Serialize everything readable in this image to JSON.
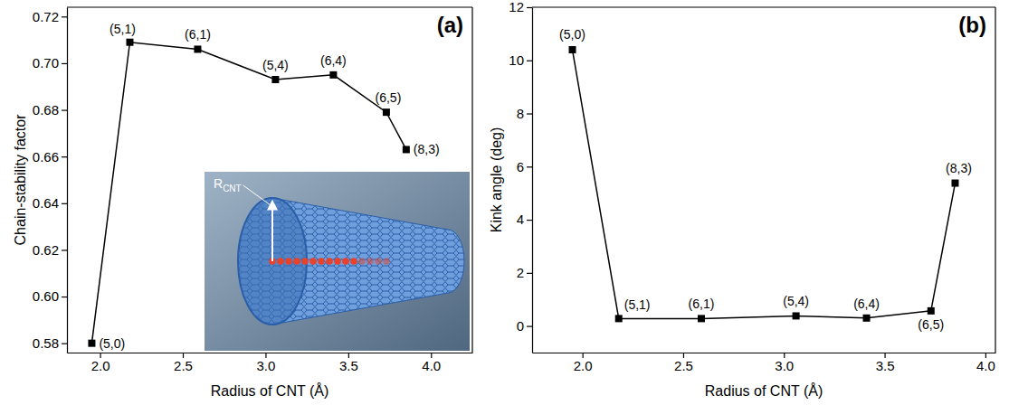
{
  "chart_data": [
    {
      "type": "line",
      "panel_label": "(a)",
      "x_label": "Radius of CNT (Å)",
      "y_label": "Chain-stability factor",
      "x": [
        1.95,
        2.18,
        2.59,
        3.06,
        3.41,
        3.73,
        3.85
      ],
      "series": [
        {
          "values": [
            0.58,
            0.709,
            0.706,
            0.693,
            0.695,
            0.679,
            0.663
          ],
          "point_labels": [
            "(5,0)",
            "(5,1)",
            "(6,1)",
            "(5,4)",
            "(6,4)",
            "(6,5)",
            "(8,3)"
          ],
          "color": "#000000",
          "marker": "square",
          "line_style": "solid"
        }
      ],
      "xlim": [
        1.8,
        4.25
      ],
      "xticks": [
        {
          "value": 2,
          "label": "2.0"
        },
        2.5,
        {
          "value": 3,
          "label": "3.0"
        },
        3.5,
        {
          "value": 4,
          "label": "4.0"
        }
      ],
      "ylim": [
        0.576,
        0.724
      ],
      "yticks": [
        0.58,
        {
          "value": 0.6,
          "label": "0.60"
        },
        0.62,
        0.64,
        0.66,
        0.68,
        {
          "value": 0.7,
          "label": "0.70"
        },
        0.72
      ],
      "inset_label": {
        "text": "R",
        "subscript": "CNT"
      }
    },
    {
      "type": "line",
      "panel_label": "(b)",
      "x_label": "Radius of CNT (Å)",
      "y_label": "Kink angle (deg)",
      "x": [
        1.95,
        2.18,
        2.59,
        3.06,
        3.41,
        3.73,
        3.85
      ],
      "series": [
        {
          "values": [
            10.4,
            0.28,
            0.28,
            0.38,
            0.3,
            0.57,
            5.38
          ],
          "point_labels": [
            "(5,0)",
            "(5,1)",
            "(6,1)",
            "(5,4)",
            "(6,4)",
            "(6,5)",
            "(8,3)"
          ],
          "color": "#000000",
          "marker": "square",
          "line_style": "solid"
        }
      ],
      "xlim": [
        1.75,
        4.05
      ],
      "xticks": [
        {
          "value": 2,
          "label": "2.0"
        },
        2.5,
        {
          "value": 3,
          "label": "3.0"
        },
        3.5,
        {
          "value": 4,
          "label": "4.0"
        }
      ],
      "ylim": [
        -1,
        12
      ],
      "yticks": [
        0,
        2,
        4,
        6,
        8,
        10,
        12
      ]
    }
  ]
}
